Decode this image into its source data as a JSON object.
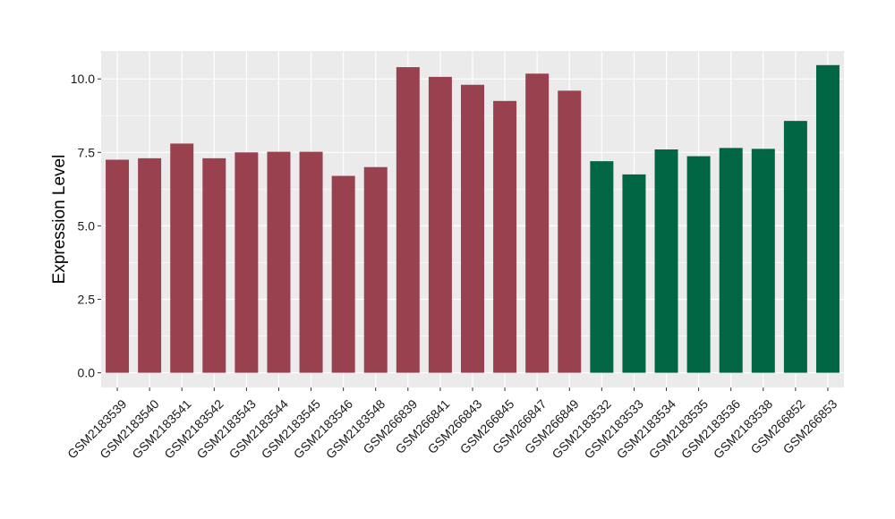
{
  "chart_data": {
    "type": "bar",
    "title": "",
    "xlabel": "",
    "ylabel": "Expression Level",
    "ylim": [
      -0.5,
      10.95
    ],
    "yticks": [
      0.0,
      2.5,
      5.0,
      7.5,
      10.0
    ],
    "ytick_labels": [
      "0.0",
      "2.5",
      "5.0",
      "7.5",
      "10.0"
    ],
    "grid": true,
    "legend": "none",
    "categories": [
      "GSM2183539",
      "GSM2183540",
      "GSM2183541",
      "GSM2183542",
      "GSM2183543",
      "GSM2183544",
      "GSM2183545",
      "GSM2183546",
      "GSM2183548",
      "GSM266839",
      "GSM266841",
      "GSM266843",
      "GSM266845",
      "GSM266847",
      "GSM266849",
      "GSM2183532",
      "GSM2183533",
      "GSM2183534",
      "GSM2183535",
      "GSM2183536",
      "GSM2183538",
      "GSM266852",
      "GSM266853"
    ],
    "values": [
      7.25,
      7.3,
      7.8,
      7.3,
      7.5,
      7.52,
      7.52,
      6.7,
      7.0,
      10.4,
      10.07,
      9.8,
      9.25,
      10.18,
      9.6,
      7.2,
      6.75,
      7.6,
      7.37,
      7.65,
      7.62,
      8.57,
      10.47
    ],
    "group_colors": [
      "#9a4150",
      "#9a4150",
      "#9a4150",
      "#9a4150",
      "#9a4150",
      "#9a4150",
      "#9a4150",
      "#9a4150",
      "#9a4150",
      "#9a4150",
      "#9a4150",
      "#9a4150",
      "#9a4150",
      "#9a4150",
      "#9a4150",
      "#006644",
      "#006644",
      "#006644",
      "#006644",
      "#006644",
      "#006644",
      "#006644",
      "#006644"
    ],
    "panel_color": "#ebebeb",
    "grid_color": "#ffffff"
  }
}
